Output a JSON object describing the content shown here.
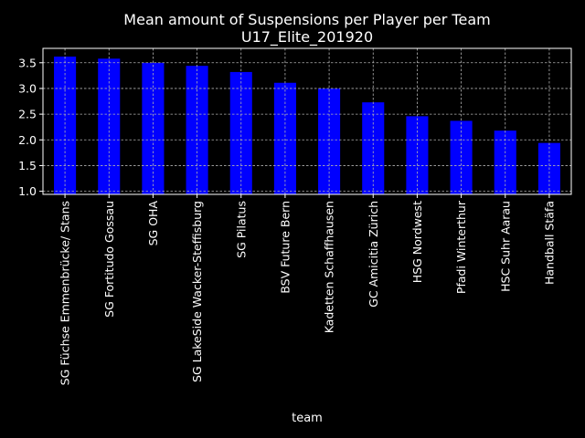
{
  "chart_data": {
    "type": "bar",
    "title": "Mean amount of Suspensions per Player per Team",
    "subtitle": "U17_Elite_201920",
    "xlabel": "team",
    "ylabel": "",
    "categories": [
      "SG Füchse Emmenbrücke/ Stans",
      "SG Fortitudo Gossau",
      "SG OHA",
      "SG LakeSide Wacker-Steffisburg",
      "SG Pilatus",
      "BSV Future Bern",
      "Kadetten Schaffhausen",
      "GC Amicitia Zürich",
      "HSG Nordwest",
      "Pfadi Winterthur",
      "HSC Suhr Aarau",
      "Handball Stäfa"
    ],
    "values": [
      3.62,
      3.58,
      3.5,
      3.44,
      3.32,
      3.11,
      3.0,
      2.73,
      2.46,
      2.37,
      2.18,
      1.94
    ],
    "ylim": [
      0.94,
      3.78
    ],
    "yticks": [
      "1.0",
      "1.5",
      "2.0",
      "2.5",
      "3.0",
      "3.5"
    ],
    "grid": true,
    "colors": {
      "background": "#000000",
      "bar": "#0000ff",
      "text": "#ffffff",
      "grid": "#b0b0b0"
    }
  }
}
